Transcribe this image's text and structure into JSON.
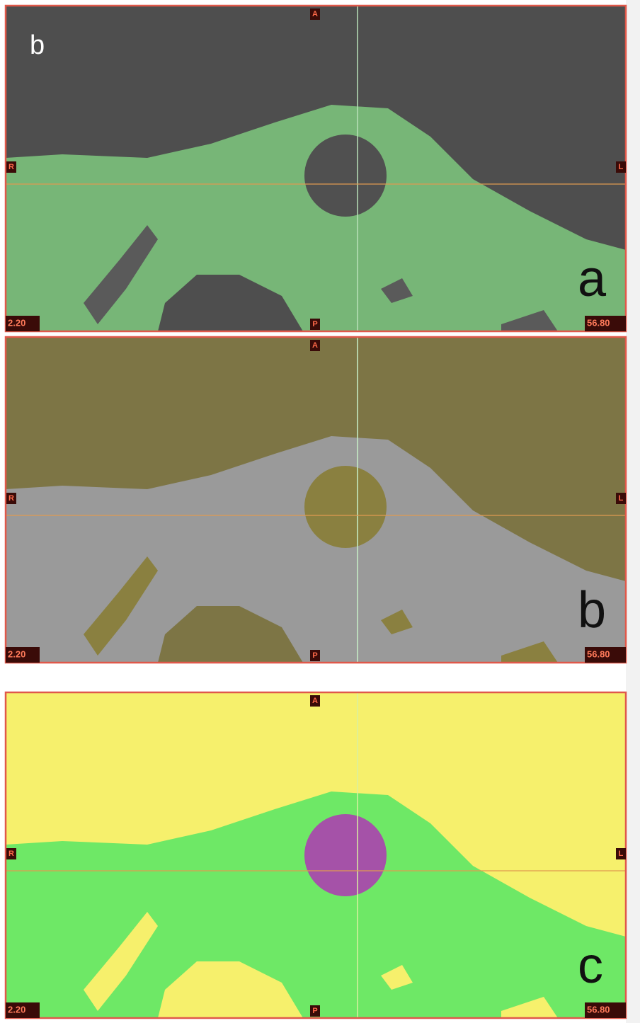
{
  "corner_label": "b",
  "panels": [
    {
      "label": "a",
      "markers": {
        "top": "A",
        "bottom": "P",
        "left": "R",
        "right": "L"
      },
      "window_min": "2.20",
      "window_max": "56.80"
    },
    {
      "label": "b",
      "markers": {
        "top": "A",
        "bottom": "P",
        "left": "R",
        "right": "L"
      },
      "window_min": "2.20",
      "window_max": "56.80"
    },
    {
      "label": "c",
      "markers": {
        "top": "A",
        "bottom": "P",
        "left": "R",
        "right": "L"
      },
      "window_min": "2.20",
      "window_max": "56.80"
    }
  ]
}
